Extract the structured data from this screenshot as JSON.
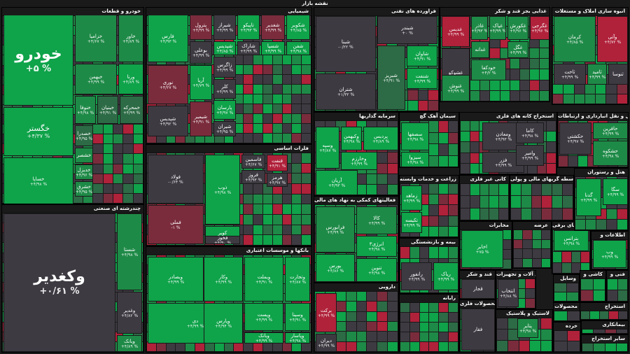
{
  "header": {
    "title": "نقشه بازار"
  },
  "colors": {
    "g3": "#0fa34a",
    "g2": "#1e8a47",
    "g1": "#2c6b45",
    "n": "#3e3a42",
    "r1": "#7a2c3c",
    "r2": "#b0213a",
    "r3": "#d0203b"
  },
  "groups": [
    {
      "id": "khodro",
      "title": "خودرو و قطعات",
      "tiles": [
        {
          "n": "خودرو",
          "p": "+۵ %",
          "c": "g3"
        },
        {
          "n": "خگستر",
          "p": "+۴/۳۷ %",
          "c": "g3"
        },
        {
          "n": "خساپا",
          "p": "+۴/۹۸ %",
          "c": "g3"
        },
        {
          "n": "خزامیا",
          "p": "+۴/۶۷ %",
          "c": "g2"
        },
        {
          "n": "خاور",
          "p": "+۴/۸۹ %",
          "c": "g2"
        },
        {
          "n": "خبهمن",
          "p": "+۴/۹۹ %",
          "c": "g2"
        },
        {
          "n": "ورنا",
          "p": "+۴/۸۹ %",
          "c": "g3"
        },
        {
          "n": "خنوفا",
          "p": "+۴/۹۸ %",
          "c": "g2"
        },
        {
          "n": "خبنیان",
          "p": "+۴/۹۱ %",
          "c": "g1"
        },
        {
          "n": "خمحرکه",
          "p": "+۴/۹۹ %",
          "c": "g1"
        },
        {
          "n": "خصدرا",
          "p": "+۴/۹۵ %",
          "c": "g1"
        },
        {
          "n": "خشصر",
          "p": "",
          "c": "g2"
        },
        {
          "n": "خدیزل",
          "p": "+۴/۹۶ %",
          "c": "g2"
        },
        {
          "n": "خشرق",
          "p": "+۴/۹۵ %",
          "c": "g2"
        }
      ]
    },
    {
      "id": "chandreshte",
      "title": "چندرشته ای صنعتی",
      "tiles": [
        {
          "n": "وکغدیر",
          "p": "+۰/۶۱ %",
          "c": "n"
        },
        {
          "n": "شستا",
          "p": "+۴/۹۸ %",
          "c": "g2"
        },
        {
          "n": "وغدیر",
          "p": "+۴/۸۲ %",
          "c": "n"
        },
        {
          "n": "وبانک",
          "p": "+۴/۸۹ %",
          "c": "g2"
        }
      ]
    },
    {
      "id": "shimiyayi",
      "title": "شیمیایی",
      "tiles": [
        {
          "n": "فارس",
          "p": "+۴/۹۳ %",
          "c": "g3"
        },
        {
          "n": "پترول",
          "p": "+۴/۹۹ %",
          "c": "r1"
        },
        {
          "n": "شیراز",
          "p": "+۴/۹۹ %",
          "c": "n"
        },
        {
          "n": "تاپیکو",
          "p": "+۴/۹۳ %",
          "c": "g3"
        },
        {
          "n": "شغدیر",
          "p": "+۴/۹۹ %",
          "c": "r1"
        },
        {
          "n": "شکویر",
          "p": "+۴/۸۵ %",
          "c": "g3"
        },
        {
          "n": "بوعلی",
          "p": "+۴/۹۹ %",
          "c": "n"
        },
        {
          "n": "شپدیس",
          "p": "+۴/۸۵ %",
          "c": "g3"
        },
        {
          "n": "شاراک",
          "p": "+۴/۹۹ %",
          "c": "n"
        },
        {
          "n": "شسپا",
          "p": "+۴/۹۹ %",
          "c": "g3"
        },
        {
          "n": "شفن",
          "p": "+۴/۹۸ %",
          "c": "g3"
        },
        {
          "n": "نوری",
          "p": "+۴/۲۷ %",
          "c": "r1"
        },
        {
          "n": "زاگرس",
          "p": "+۴/۹۹ %",
          "c": "n"
        },
        {
          "n": "آریا",
          "p": "+۴/۷۹ %",
          "c": "g3"
        },
        {
          "n": "کلر",
          "p": "+۴/۹۹ %",
          "c": "n"
        },
        {
          "n": "پارسان",
          "p": "+۴/۹۷ %",
          "c": "g3"
        },
        {
          "n": "شپدیس",
          "p": "+۴/۹۲ %",
          "c": "n"
        },
        {
          "n": "شیمیر",
          "p": "+۴/۹۱ %",
          "c": "r1"
        },
        {
          "n": "شیران",
          "p": "+۴/۹۵ %",
          "c": "n"
        }
      ]
    },
    {
      "id": "felezat",
      "title": "فلزات اساسی",
      "tiles": [
        {
          "n": "فولاد",
          "p": "-۰/۶۴ %",
          "c": "n"
        },
        {
          "n": "ذوب",
          "p": "+۴/۹۸ %",
          "c": "g3"
        },
        {
          "n": "فملی",
          "p": "-۱ %",
          "c": "r1"
        },
        {
          "n": "فاسمین",
          "p": "+۴/۶۷ %",
          "c": "n"
        },
        {
          "n": "فنفت",
          "p": "+۴/۹۱ %",
          "c": "r2"
        },
        {
          "n": "فروز",
          "p": "+۴/۹۳ %",
          "c": "n"
        },
        {
          "n": "هرمز",
          "p": "+۴/۹۷ %",
          "c": "n"
        },
        {
          "n": "کویر",
          "p": "+۴/۸۹ %",
          "c": "g3"
        },
        {
          "n": "فخوز",
          "p": "+۴/۹۰ %",
          "c": "n"
        }
      ]
    },
    {
      "id": "bank",
      "title": "بانکها و موسسات اعتباری",
      "tiles": [
        {
          "n": "وبصادر",
          "p": "+۴/۹۹ %",
          "c": "g3"
        },
        {
          "n": "وبملت",
          "p": "+۴/۹۱ %",
          "c": "g3"
        },
        {
          "n": "وتجارت",
          "p": "+۴/۸۷ %",
          "c": "g3"
        },
        {
          "n": "دی",
          "p": "+۴/۹۹ %",
          "c": "g3"
        },
        {
          "n": "وپست",
          "p": "+۴/۹۹ %",
          "c": "g3"
        },
        {
          "n": "وسینا",
          "p": "+۴/۹۱ %",
          "c": "g3"
        },
        {
          "n": "وبانک",
          "p": "+۴/۹۹ %",
          "c": "g3"
        },
        {
          "n": "وپاسار",
          "p": "+۴/۹۸ %",
          "c": "g3"
        },
        {
          "n": "وکار",
          "p": "+۴/۹۹ %",
          "c": "g3"
        },
        {
          "n": "وپارس",
          "p": "+۴/۹۴ %",
          "c": "g3"
        }
      ]
    },
    {
      "id": "naft",
      "title": "فراورده های نفتی",
      "tiles": [
        {
          "n": "شبنا",
          "p": "-۰/۲۲ %",
          "c": "n"
        },
        {
          "n": "شبندر",
          "p": "+۰ %",
          "c": "n"
        },
        {
          "n": "شتران",
          "p": "+۱/۳۲ %",
          "c": "n"
        },
        {
          "n": "شبریز",
          "p": "+۴/۹۱ %",
          "c": "g1"
        },
        {
          "n": "شاوان",
          "p": "+۴/۹۱ %",
          "c": "g3"
        },
        {
          "n": "شنفت",
          "p": "+۴/۹۹ %",
          "c": "g3"
        }
      ]
    },
    {
      "id": "ghaza",
      "title": "غذایی بجز قند و شکر",
      "tiles": [
        {
          "n": "غدیس",
          "p": "+۴/۹۹ %",
          "c": "r2"
        },
        {
          "n": "غاذر",
          "p": "+۴/۹۳ %",
          "c": "g2"
        },
        {
          "n": "غپاک",
          "p": "+۴/۹۹ %",
          "c": "g2"
        },
        {
          "n": "غکورش",
          "p": "+۴/۹۶ %",
          "c": "g2"
        },
        {
          "n": "غگرجی",
          "p": "+۴/۹۶ %",
          "c": "r2"
        },
        {
          "n": "غدانه",
          "p": "",
          "c": "g2"
        },
        {
          "n": "غگل",
          "p": "+۴/۹۹ %",
          "c": "g2"
        },
        {
          "n": "غشوکو",
          "p": "+۴/۸۹ %",
          "c": "n"
        },
        {
          "n": "خودکفا",
          "p": "+۴/۲ %",
          "c": "g2"
        },
        {
          "n": "غنوش",
          "p": "+۴/۹۹ %",
          "c": "g2"
        }
      ]
    },
    {
      "id": "amlak",
      "title": "انبوه سازی املاک و مستغلات",
      "tiles": [
        {
          "n": "کرمان",
          "p": "+۴/۸۵ %",
          "c": "g2"
        },
        {
          "n": "وآتی",
          "p": "+۴/۷۲ %",
          "c": "r2"
        },
        {
          "n": "ثاخت",
          "p": "+۴/۹۹ %",
          "c": "n"
        },
        {
          "n": "ثامید",
          "p": "+۴/۹۹ %",
          "c": "g2"
        },
        {
          "n": "ثنوسا",
          "p": "",
          "c": "n"
        }
      ]
    },
    {
      "id": "sarmaye",
      "title": "سرمایه گذاریها",
      "tiles": [
        {
          "n": "وسپه",
          "p": "+۴/۸۷ %",
          "c": "g3"
        },
        {
          "n": "وکبهمن",
          "p": "+۴/۹۸ %",
          "c": "g3"
        },
        {
          "n": "پردیس",
          "p": "+۴/۸۹ %",
          "c": "g3"
        },
        {
          "n": "وخارزم",
          "p": "+۴/۹۹ %",
          "c": "g3"
        },
        {
          "n": "آریان",
          "p": "+۴/۹۳ %",
          "c": "g3"
        }
      ]
    },
    {
      "id": "siman",
      "title": "سیمان آهک گچ",
      "tiles": [
        {
          "n": "سصفها",
          "p": "+۴/۹۸ %",
          "c": "g3"
        },
        {
          "n": "سیزوا",
          "p": "+۴/۹۸ %",
          "c": "g3"
        }
      ]
    },
    {
      "id": "kani",
      "title": "استخراج کانه های فلزی",
      "tiles": [
        {
          "n": "ومعادن",
          "p": "+۴/۹۳ %",
          "c": "n"
        },
        {
          "n": "کاما",
          "p": "+۴/۹۸ %",
          "c": "n"
        },
        {
          "n": "فزر",
          "p": "+۴/۹۹ %",
          "c": "n"
        },
        {
          "n": "وامیر",
          "p": "+۴/۹۹ %",
          "c": "n"
        }
      ]
    },
    {
      "id": "hamlonaql",
      "title": "حمل و نقل انبارداری و ارتباطات",
      "tiles": [
        {
          "n": "حافرین",
          "p": "+۴/۹۹ %",
          "c": "g2"
        },
        {
          "n": "حکشتی",
          "p": "+۴/۹۷ %",
          "c": "n"
        },
        {
          "n": "حشکوه",
          "p": "+۴/۹۸ %",
          "c": "g2"
        }
      ]
    },
    {
      "id": "mali",
      "title": "فعالیتهای کمکی به نهاد های مالی",
      "tiles": [
        {
          "n": "فرابورس",
          "p": "+۴/۹۹ %",
          "c": "g2"
        },
        {
          "n": "کالا",
          "p": "+۴/۹۹ %",
          "c": "g2"
        },
        {
          "n": "انرژی۳",
          "p": "+۴/۹۸ %",
          "c": "g3"
        },
        {
          "n": "بورس",
          "p": "+۴/۸۶ %",
          "c": "g3"
        },
        {
          "n": "تنوین",
          "p": "+۴/۹۸ %",
          "c": "g3"
        }
      ]
    },
    {
      "id": "daroo",
      "title": "دارویی",
      "tiles": [
        {
          "n": "برکت",
          "p": "+۴/۹۹ %",
          "c": "r2"
        },
        {
          "n": "دیران",
          "p": "+۴/۹۹ %",
          "c": "n"
        }
      ]
    },
    {
      "id": "zeraat",
      "title": "زراعت و خدمات وابسته",
      "tiles": [
        {
          "n": "زماهد",
          "p": "+۴/۹۹ %",
          "c": "g3"
        },
        {
          "n": "تکیسه",
          "p": "+۴/۹۹ %",
          "c": "g3"
        }
      ]
    },
    {
      "id": "bimeh",
      "title": "بیمه و بازنشستگی",
      "tiles": [
        {
          "n": "رانفور",
          "p": "+۴/۹۹ %",
          "c": "n"
        },
        {
          "n": "ریاک",
          "p": "+۴/۹۹ %",
          "c": "g3"
        }
      ]
    },
    {
      "id": "rayane",
      "title": "رایانه",
      "tiles": []
    },
    {
      "id": "kanighair",
      "title": "کانی غیر فلزی",
      "tiles": []
    },
    {
      "id": "mokhaberat",
      "title": "مخابرات",
      "tiles": [
        {
          "n": "اخابر",
          "p": "+۷۵ %",
          "c": "g3"
        }
      ]
    },
    {
      "id": "ghand",
      "title": "قند و شکر",
      "tiles": [
        {
          "n": "قجار",
          "p": "",
          "c": "n"
        }
      ]
    },
    {
      "id": "felezi",
      "title": "محصولات فلزی",
      "tiles": [
        {
          "n": "فقار",
          "p": "",
          "c": "n"
        }
      ]
    },
    {
      "id": "vasete",
      "title": "واسطه گریهای مالی و پولی",
      "tiles": []
    },
    {
      "id": "arze",
      "title": "عرضه",
      "tiles": []
    },
    {
      "id": "mashin",
      "title": "ماشین آلات و تجهیزات",
      "tiles": [
        {
          "n": "انتخاب",
          "p": "+۴/۸۸ %",
          "c": "n"
        }
      ]
    },
    {
      "id": "lastik",
      "title": "لاستیک و پلاستیک",
      "tiles": [
        {
          "n": "پتایر",
          "p": "+۴/۹۸ %",
          "c": "g2"
        }
      ]
    },
    {
      "id": "dastgah",
      "title": "دستگاههای برقی",
      "tiles": [
        {
          "n": "بترانس",
          "p": "+۴/۹۸ %",
          "c": "g3"
        }
      ]
    },
    {
      "id": "hotel",
      "title": "هتل و رستوران",
      "tiles": [
        {
          "n": "سگا",
          "p": "+۴/۹۹ %",
          "c": "g3"
        },
        {
          "n": "گدنا",
          "p": "+۴/۹۹ %",
          "c": "g3"
        }
      ]
    },
    {
      "id": "ettelaat",
      "title": "اطلاعات و",
      "tiles": [
        {
          "n": "وب",
          "p": "+۴/۹۹ %",
          "c": "g3"
        }
      ]
    },
    {
      "id": "fanni",
      "title": "فنی و",
      "tiles": []
    },
    {
      "id": "kashi",
      "title": "کاشی و",
      "tiles": []
    },
    {
      "id": "vasayel",
      "title": "وسایل",
      "tiles": []
    },
    {
      "id": "mahsoolat",
      "title": "محصولات",
      "tiles": []
    },
    {
      "id": "estekhraj",
      "title": "استخراج",
      "tiles": []
    },
    {
      "id": "biman",
      "title": "بیمانکاری",
      "tiles": []
    },
    {
      "id": "khorde",
      "title": "خرده",
      "tiles": []
    },
    {
      "id": "sayer",
      "title": "سایر استخراج",
      "tiles": []
    }
  ]
}
